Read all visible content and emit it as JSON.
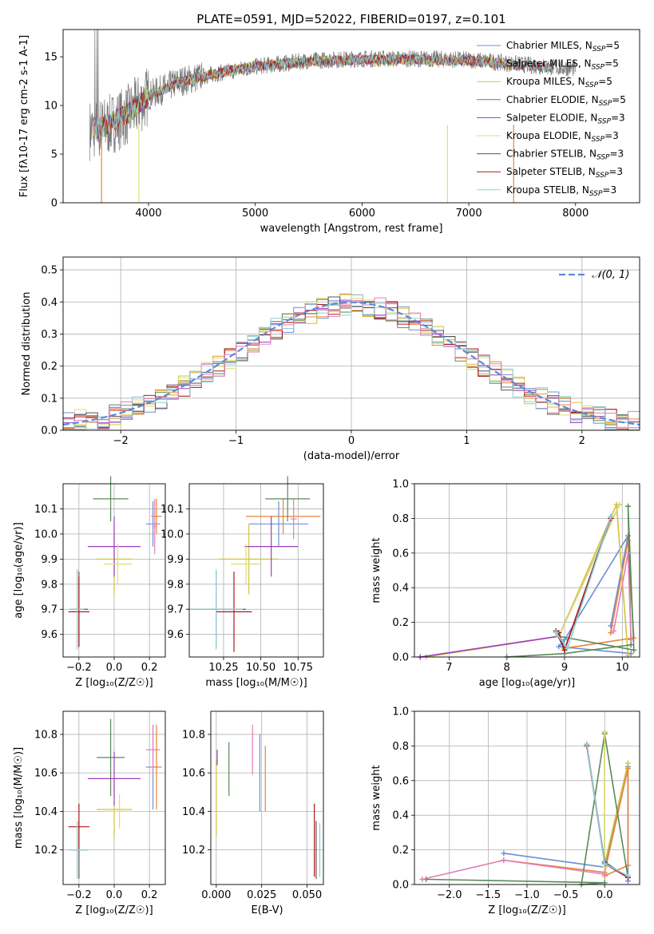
{
  "figure": {
    "title": "PLATE=0591, MJD=52022, FIBERID=0197, z=0.101",
    "colors": {
      "Chabrier MILES": "#6b8fd6",
      "Salpeter MILES": "#e8843a",
      "Kroupa MILES": "#d4c23a",
      "Chabrier ELODIE": "#5a8a5a",
      "Salpeter ELODIE": "#9b3fc0",
      "Kroupa ELODIE": "#dde070",
      "Chabrier STELIB": "#555555",
      "Salpeter STELIB": "#b01818",
      "Kroupa STELIB": "#8cd0d8",
      "pink": "#e07fb8",
      "normal": "#5b8ad8",
      "data": "#7a7a7a"
    }
  },
  "chart_data": [
    {
      "id": "spectrum",
      "type": "line",
      "xlabel": "wavelength [Angstrom, rest frame]",
      "ylabel": "Flux [f$_λ$10$^{-17}$ erg cm$^{-2}$ s$^{-1}$ A$^{-1}$]",
      "xlim": [
        3200,
        8600
      ],
      "ylim": [
        0,
        17.8
      ],
      "xticks": [
        4000,
        5000,
        6000,
        7000,
        8000
      ],
      "yticks": [
        0,
        5,
        10,
        15
      ],
      "grid": false,
      "legend_position": "right",
      "legend": [
        {
          "label": "Chabrier MILES, N",
          "sub": "SSP",
          "tail": "=5",
          "key": "Chabrier MILES"
        },
        {
          "label": "Salpeter MILES, N",
          "sub": "SSP",
          "tail": "=5",
          "key": "Salpeter MILES"
        },
        {
          "label": "Kroupa MILES, N",
          "sub": "SSP",
          "tail": "=5",
          "key": "Kroupa MILES"
        },
        {
          "label": "Chabrier ELODIE, N",
          "sub": "SSP",
          "tail": "=5",
          "key": "Chabrier ELODIE"
        },
        {
          "label": "Salpeter ELODIE, N",
          "sub": "SSP",
          "tail": "=3",
          "key": "Salpeter ELODIE"
        },
        {
          "label": "Kroupa ELODIE, N",
          "sub": "SSP",
          "tail": "=3",
          "key": "Kroupa ELODIE"
        },
        {
          "label": "Chabrier STELIB, N",
          "sub": "SSP",
          "tail": "=3",
          "key": "Chabrier STELIB"
        },
        {
          "label": "Salpeter STELIB, N",
          "sub": "SSP",
          "tail": "=3",
          "key": "Salpeter STELIB"
        },
        {
          "label": "Kroupa STELIB, N",
          "sub": "SSP",
          "tail": "=3",
          "key": "Kroupa STELIB"
        }
      ],
      "data_trend": {
        "x": [
          3450,
          3600,
          3800,
          4000,
          4300,
          4600,
          5000,
          5500,
          6000,
          6500,
          7000,
          7400,
          7800,
          8000
        ],
        "y": [
          7.5,
          7.8,
          9.0,
          11.0,
          12.5,
          13.2,
          14.0,
          14.6,
          14.8,
          14.8,
          14.7,
          14.3,
          13.9,
          13.8
        ]
      },
      "model_trend": {
        "x": [
          3500,
          3600,
          3800,
          4000,
          4300,
          4600,
          5000,
          5500,
          6000,
          6500,
          7000,
          7400
        ],
        "y": [
          7.6,
          7.9,
          9.2,
          11.0,
          12.4,
          13.2,
          14.0,
          14.5,
          14.7,
          14.7,
          14.6,
          14.2
        ]
      },
      "dips": [
        {
          "x": 3560,
          "y": 0,
          "series": "Salpeter MILES"
        },
        {
          "x": 3910,
          "y": 0,
          "series": "Kroupa ELODIE"
        },
        {
          "x": 6800,
          "y": 0,
          "series": "Kroupa ELODIE"
        },
        {
          "x": 7420,
          "y": 0,
          "series": "Salpeter MILES"
        }
      ]
    },
    {
      "id": "residuals",
      "type": "histogram",
      "xlabel": "(data-model)/error",
      "ylabel": "Normed distribution",
      "xlim": [
        -2.5,
        2.5
      ],
      "ylim": [
        0,
        0.54
      ],
      "xticks": [
        -2,
        -1,
        0,
        1,
        2
      ],
      "yticks": [
        0.0,
        0.1,
        0.2,
        0.3,
        0.4,
        0.5
      ],
      "grid": true,
      "bin_width": 0.1,
      "legend": [
        {
          "label": "𝒩(0, 1)",
          "key": "normal",
          "style": "dashed"
        }
      ],
      "normal_curve": {
        "mean": 0,
        "sigma": 1
      }
    },
    {
      "id": "age-vs-Z",
      "type": "errorbar",
      "xlabel": "Z [log₁₀(Z/Z☉)]",
      "ylabel": "age  [log₁₀(age/yr)]",
      "xlim": [
        -0.29,
        0.29
      ],
      "ylim": [
        9.51,
        10.2
      ],
      "xticks": [
        -0.2,
        0.0,
        0.2
      ],
      "yticks": [
        9.6,
        9.7,
        9.8,
        9.9,
        10.0,
        10.1
      ],
      "grid": true,
      "points": [
        {
          "series": "Chabrier MILES",
          "x": 0.22,
          "xerr": 0.04,
          "y": 10.04,
          "yerr": 0.09
        },
        {
          "series": "Salpeter MILES",
          "x": 0.24,
          "xerr": 0.03,
          "y": 10.07,
          "yerr": 0.07
        },
        {
          "series": "Kroupa MILES",
          "x": 0.0,
          "xerr": 0.1,
          "y": 9.9,
          "yerr": 0.14
        },
        {
          "series": "Chabrier ELODIE",
          "x": -0.02,
          "xerr": 0.1,
          "y": 10.14,
          "yerr": 0.09
        },
        {
          "series": "Salpeter ELODIE",
          "x": 0.0,
          "xerr": 0.15,
          "y": 9.95,
          "yerr": 0.12
        },
        {
          "series": "Kroupa ELODIE",
          "x": 0.02,
          "xerr": 0.08,
          "y": 9.88,
          "yerr": 0.08
        },
        {
          "series": "Chabrier STELIB",
          "x": -0.2,
          "xerr": 0.05,
          "y": 9.7,
          "yerr": 0.15
        },
        {
          "series": "Salpeter STELIB",
          "x": -0.2,
          "xerr": 0.06,
          "y": 9.69,
          "yerr": 0.14
        },
        {
          "series": "Kroupa STELIB",
          "x": -0.21,
          "xerr": 0.04,
          "y": 9.7,
          "yerr": 0.16
        },
        {
          "series": "pink",
          "x": 0.23,
          "xerr": 0.01,
          "y": 10.03,
          "yerr": 0.11
        }
      ]
    },
    {
      "id": "age-vs-mass",
      "type": "errorbar",
      "xlabel": "mass [log₁₀(M/M☉)]",
      "ylabel": "",
      "xlim": [
        10.02,
        10.92
      ],
      "ylim": [
        9.51,
        10.2
      ],
      "xticks": [
        10.25,
        10.5,
        10.75
      ],
      "yticks": [
        9.6,
        9.7,
        9.8,
        9.9,
        10.0,
        10.1
      ],
      "grid": true,
      "points": [
        {
          "series": "Chabrier MILES",
          "x": 10.62,
          "xerr": 0.2,
          "y": 10.04,
          "yerr": 0.09
        },
        {
          "series": "Salpeter MILES",
          "x": 10.65,
          "xerr": 0.25,
          "y": 10.07,
          "yerr": 0.07
        },
        {
          "series": "Kroupa MILES",
          "x": 10.42,
          "xerr": 0.2,
          "y": 9.9,
          "yerr": 0.14
        },
        {
          "series": "Chabrier ELODIE",
          "x": 10.68,
          "xerr": 0.15,
          "y": 10.14,
          "yerr": 0.09
        },
        {
          "series": "Salpeter ELODIE",
          "x": 10.57,
          "xerr": 0.18,
          "y": 9.95,
          "yerr": 0.12
        },
        {
          "series": "Kroupa ELODIE",
          "x": 10.4,
          "xerr": 0.1,
          "y": 9.88,
          "yerr": 0.08
        },
        {
          "series": "Chabrier STELIB",
          "x": 10.2,
          "xerr": 0.2,
          "y": 9.7,
          "yerr": 0.15
        },
        {
          "series": "Salpeter STELIB",
          "x": 10.32,
          "xerr": 0.12,
          "y": 9.69,
          "yerr": 0.16
        },
        {
          "series": "Kroupa STELIB",
          "x": 10.2,
          "xerr": 0.18,
          "y": 9.7,
          "yerr": 0.16
        },
        {
          "series": "pink",
          "x": 10.72,
          "xerr": 0.02,
          "y": 10.06,
          "yerr": 0.08
        }
      ]
    },
    {
      "id": "weight-vs-age",
      "type": "line",
      "xlabel": "age  [log₁₀(age/yr)]",
      "ylabel": "mass weight",
      "xlim": [
        6.4,
        10.3
      ],
      "ylim": [
        0,
        1.0
      ],
      "xticks": [
        7,
        8,
        9,
        10
      ],
      "yticks": [
        0.0,
        0.2,
        0.4,
        0.6,
        0.8,
        1.0
      ],
      "grid": true,
      "series": [
        {
          "series": "Chabrier MILES",
          "x": [
            9.8,
            10.1,
            9.0,
            8.9,
            10.15
          ],
          "y": [
            0.18,
            0.7,
            0.1,
            0.06,
            0.02
          ]
        },
        {
          "series": "Salpeter MILES",
          "x": [
            9.8,
            10.1,
            10.2,
            9.0
          ],
          "y": [
            0.14,
            0.67,
            0.11,
            0.05
          ]
        },
        {
          "series": "Kroupa MILES",
          "x": [
            6.6,
            8.9,
            9.9,
            10.1
          ],
          "y": [
            0.0,
            0.12,
            0.88,
            0.01
          ]
        },
        {
          "series": "Chabrier ELODIE",
          "x": [
            8.0,
            9.0,
            10.15,
            10.1,
            10.2,
            8.9
          ],
          "y": [
            0.0,
            0.02,
            0.07,
            0.87,
            0.04,
            0.12
          ]
        },
        {
          "series": "Salpeter ELODIE",
          "x": [
            6.5,
            8.9,
            9.95
          ],
          "y": [
            0.0,
            0.12,
            0.88
          ]
        },
        {
          "series": "Kroupa ELODIE",
          "x": [
            8.9,
            9.95
          ],
          "y": [
            0.12,
            0.88
          ]
        },
        {
          "series": "Chabrier STELIB",
          "x": [
            8.85,
            9.0,
            9.8
          ],
          "y": [
            0.15,
            0.04,
            0.81
          ]
        },
        {
          "series": "Salpeter STELIB",
          "x": [
            8.9,
            9.0,
            9.8
          ],
          "y": [
            0.14,
            0.04,
            0.8
          ]
        },
        {
          "series": "Kroupa STELIB",
          "x": [
            8.85,
            9.05,
            9.8
          ],
          "y": [
            0.14,
            0.05,
            0.81
          ]
        },
        {
          "series": "pink",
          "x": [
            9.85,
            10.1,
            10.15
          ],
          "y": [
            0.15,
            0.6,
            0.1
          ]
        }
      ]
    },
    {
      "id": "mass-vs-Z",
      "type": "errorbar",
      "xlabel": "Z [log₁₀(Z/Z☉)]",
      "ylabel": "mass [log₁₀(M/M☉)]",
      "xlim": [
        -0.29,
        0.29
      ],
      "ylim": [
        10.02,
        10.92
      ],
      "xticks": [
        -0.2,
        0.0,
        0.2
      ],
      "yticks": [
        10.2,
        10.4,
        10.6,
        10.8
      ],
      "grid": true,
      "points": [
        {
          "series": "Chabrier MILES",
          "x": 0.22,
          "xerr": 0.04,
          "y": 10.63,
          "yerr": 0.22
        },
        {
          "series": "Salpeter MILES",
          "x": 0.24,
          "xerr": 0.03,
          "y": 10.63,
          "yerr": 0.22
        },
        {
          "series": "Kroupa MILES",
          "x": 0.0,
          "xerr": 0.1,
          "y": 10.41,
          "yerr": 0.15
        },
        {
          "series": "Chabrier ELODIE",
          "x": -0.02,
          "xerr": 0.08,
          "y": 10.68,
          "yerr": 0.2
        },
        {
          "series": "Salpeter ELODIE",
          "x": 0.0,
          "xerr": 0.15,
          "y": 10.57,
          "yerr": 0.14
        },
        {
          "series": "Kroupa ELODIE",
          "x": 0.03,
          "xerr": 0.08,
          "y": 10.4,
          "yerr": 0.09
        },
        {
          "series": "Chabrier STELIB",
          "x": -0.2,
          "xerr": 0.05,
          "y": 10.2,
          "yerr": 0.15
        },
        {
          "series": "Salpeter STELIB",
          "x": -0.2,
          "xerr": 0.06,
          "y": 10.32,
          "yerr": 0.12
        },
        {
          "series": "Kroupa STELIB",
          "x": -0.21,
          "xerr": 0.06,
          "y": 10.2,
          "yerr": 0.15
        },
        {
          "series": "pink",
          "x": 0.22,
          "xerr": 0.04,
          "y": 10.72,
          "yerr": 0.13
        }
      ]
    },
    {
      "id": "mass-vs-EBV",
      "type": "errorbar",
      "xlabel": "E(B-V)",
      "ylabel": "",
      "xlim": [
        -0.003,
        0.059
      ],
      "ylim": [
        10.02,
        10.92
      ],
      "xticks": [
        0.0,
        0.025,
        0.05
      ],
      "xtick_labels": [
        "0.000",
        "0.025",
        "0.050"
      ],
      "yticks": [
        10.2,
        10.4,
        10.6,
        10.8
      ],
      "grid": true,
      "points": [
        {
          "series": "Kroupa MILES",
          "x": 0.0,
          "xerr": 0,
          "y": 10.47,
          "yerr": 0.2
        },
        {
          "series": "Salpeter ELODIE",
          "x": 0.0005,
          "xerr": 0,
          "y": 10.68,
          "yerr": 0.04
        },
        {
          "series": "Chabrier ELODIE",
          "x": 0.007,
          "xerr": 0,
          "y": 10.62,
          "yerr": 0.14
        },
        {
          "series": "pink",
          "x": 0.02,
          "xerr": 0,
          "y": 10.72,
          "yerr": 0.13
        },
        {
          "series": "Chabrier MILES",
          "x": 0.024,
          "xerr": 0,
          "y": 10.6,
          "yerr": 0.2
        },
        {
          "series": "Salpeter MILES",
          "x": 0.027,
          "xerr": 0,
          "y": 10.57,
          "yerr": 0.17
        },
        {
          "series": "Salpeter STELIB",
          "x": 0.054,
          "xerr": 0,
          "y": 10.25,
          "yerr": 0.19
        },
        {
          "series": "Chabrier STELIB",
          "x": 0.055,
          "xerr": 0,
          "y": 10.2,
          "yerr": 0.15
        },
        {
          "series": "Kroupa STELIB",
          "x": 0.057,
          "xerr": 0,
          "y": 10.2,
          "yerr": 0.14
        }
      ]
    },
    {
      "id": "weight-vs-Z",
      "type": "line",
      "xlabel": "Z [log₁₀(Z/Z☉)]",
      "ylabel": "mass weight",
      "xlim": [
        -2.45,
        0.45
      ],
      "ylim": [
        0,
        1.0
      ],
      "xticks": [
        -2.0,
        -1.5,
        -1.0,
        -0.5,
        0.0
      ],
      "yticks": [
        0.0,
        0.2,
        0.4,
        0.6,
        0.8,
        1.0
      ],
      "grid": true,
      "series": [
        {
          "series": "Chabrier MILES",
          "x": [
            -1.3,
            0.0,
            0.3,
            0.3
          ],
          "y": [
            0.18,
            0.1,
            0.68,
            0.02
          ]
        },
        {
          "series": "Salpeter MILES",
          "x": [
            -1.3,
            0.0,
            0.3,
            0.3,
            0.0
          ],
          "y": [
            0.14,
            0.07,
            0.67,
            0.11,
            0.05
          ]
        },
        {
          "series": "Kroupa MILES",
          "x": [
            0.0,
            0.0,
            0.3
          ],
          "y": [
            0.88,
            0.12,
            0.7
          ]
        },
        {
          "series": "Chabrier ELODIE",
          "x": [
            -2.3,
            0.0,
            -0.3,
            0.0,
            0.3
          ],
          "y": [
            0.03,
            0.01,
            0.0,
            0.87,
            0.04
          ]
        },
        {
          "series": "Salpeter ELODIE",
          "x": [
            0.0,
            0.0
          ],
          "y": [
            0.88,
            0.12
          ]
        },
        {
          "series": "Kroupa ELODIE",
          "x": [
            0.0,
            0.0
          ],
          "y": [
            0.88,
            0.1
          ]
        },
        {
          "series": "Chabrier STELIB",
          "x": [
            -0.23,
            0.0,
            0.3
          ],
          "y": [
            0.81,
            0.13,
            0.04
          ]
        },
        {
          "series": "Salpeter STELIB",
          "x": [
            -0.23,
            0.0,
            0.3
          ],
          "y": [
            0.8,
            0.12,
            0.04
          ]
        },
        {
          "series": "Kroupa STELIB",
          "x": [
            -0.23,
            0.0,
            0.3
          ],
          "y": [
            0.81,
            0.12,
            0.05
          ]
        },
        {
          "series": "pink",
          "x": [
            -2.35,
            -1.3,
            0.0
          ],
          "y": [
            0.03,
            0.14,
            0.06
          ]
        }
      ]
    }
  ]
}
